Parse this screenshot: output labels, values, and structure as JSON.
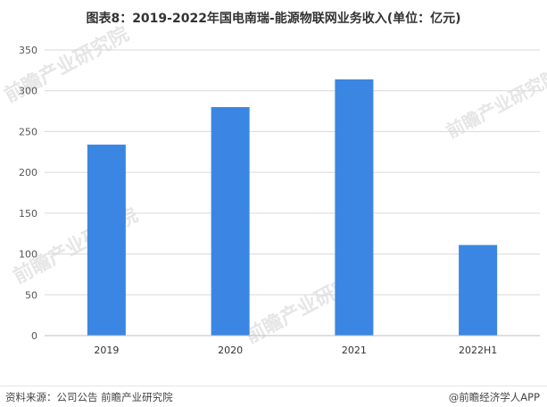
{
  "title": "图表8：2019-2022年国电南瑞-能源物联网业务收入(单位：亿元)",
  "source": "资料来源：公司公告 前瞻产业研究院",
  "brand": "@前瞻经济学人APP",
  "watermark": "前瞻产业研究院",
  "colors": {
    "bar": "#3b86e2",
    "grid": "#d9d9d9",
    "axis": "#bfbfbf"
  },
  "chart_data": {
    "type": "bar",
    "categories": [
      "2019",
      "2020",
      "2021",
      "2022H1"
    ],
    "values": [
      234,
      280,
      314,
      111
    ],
    "title": "图表8：2019-2022年国电南瑞-能源物联网业务收入(单位：亿元)",
    "xlabel": "",
    "ylabel": "",
    "ylim": [
      0,
      350
    ],
    "yticks": [
      0,
      50,
      100,
      150,
      200,
      250,
      300,
      350
    ],
    "grid": true,
    "legend": "none"
  }
}
